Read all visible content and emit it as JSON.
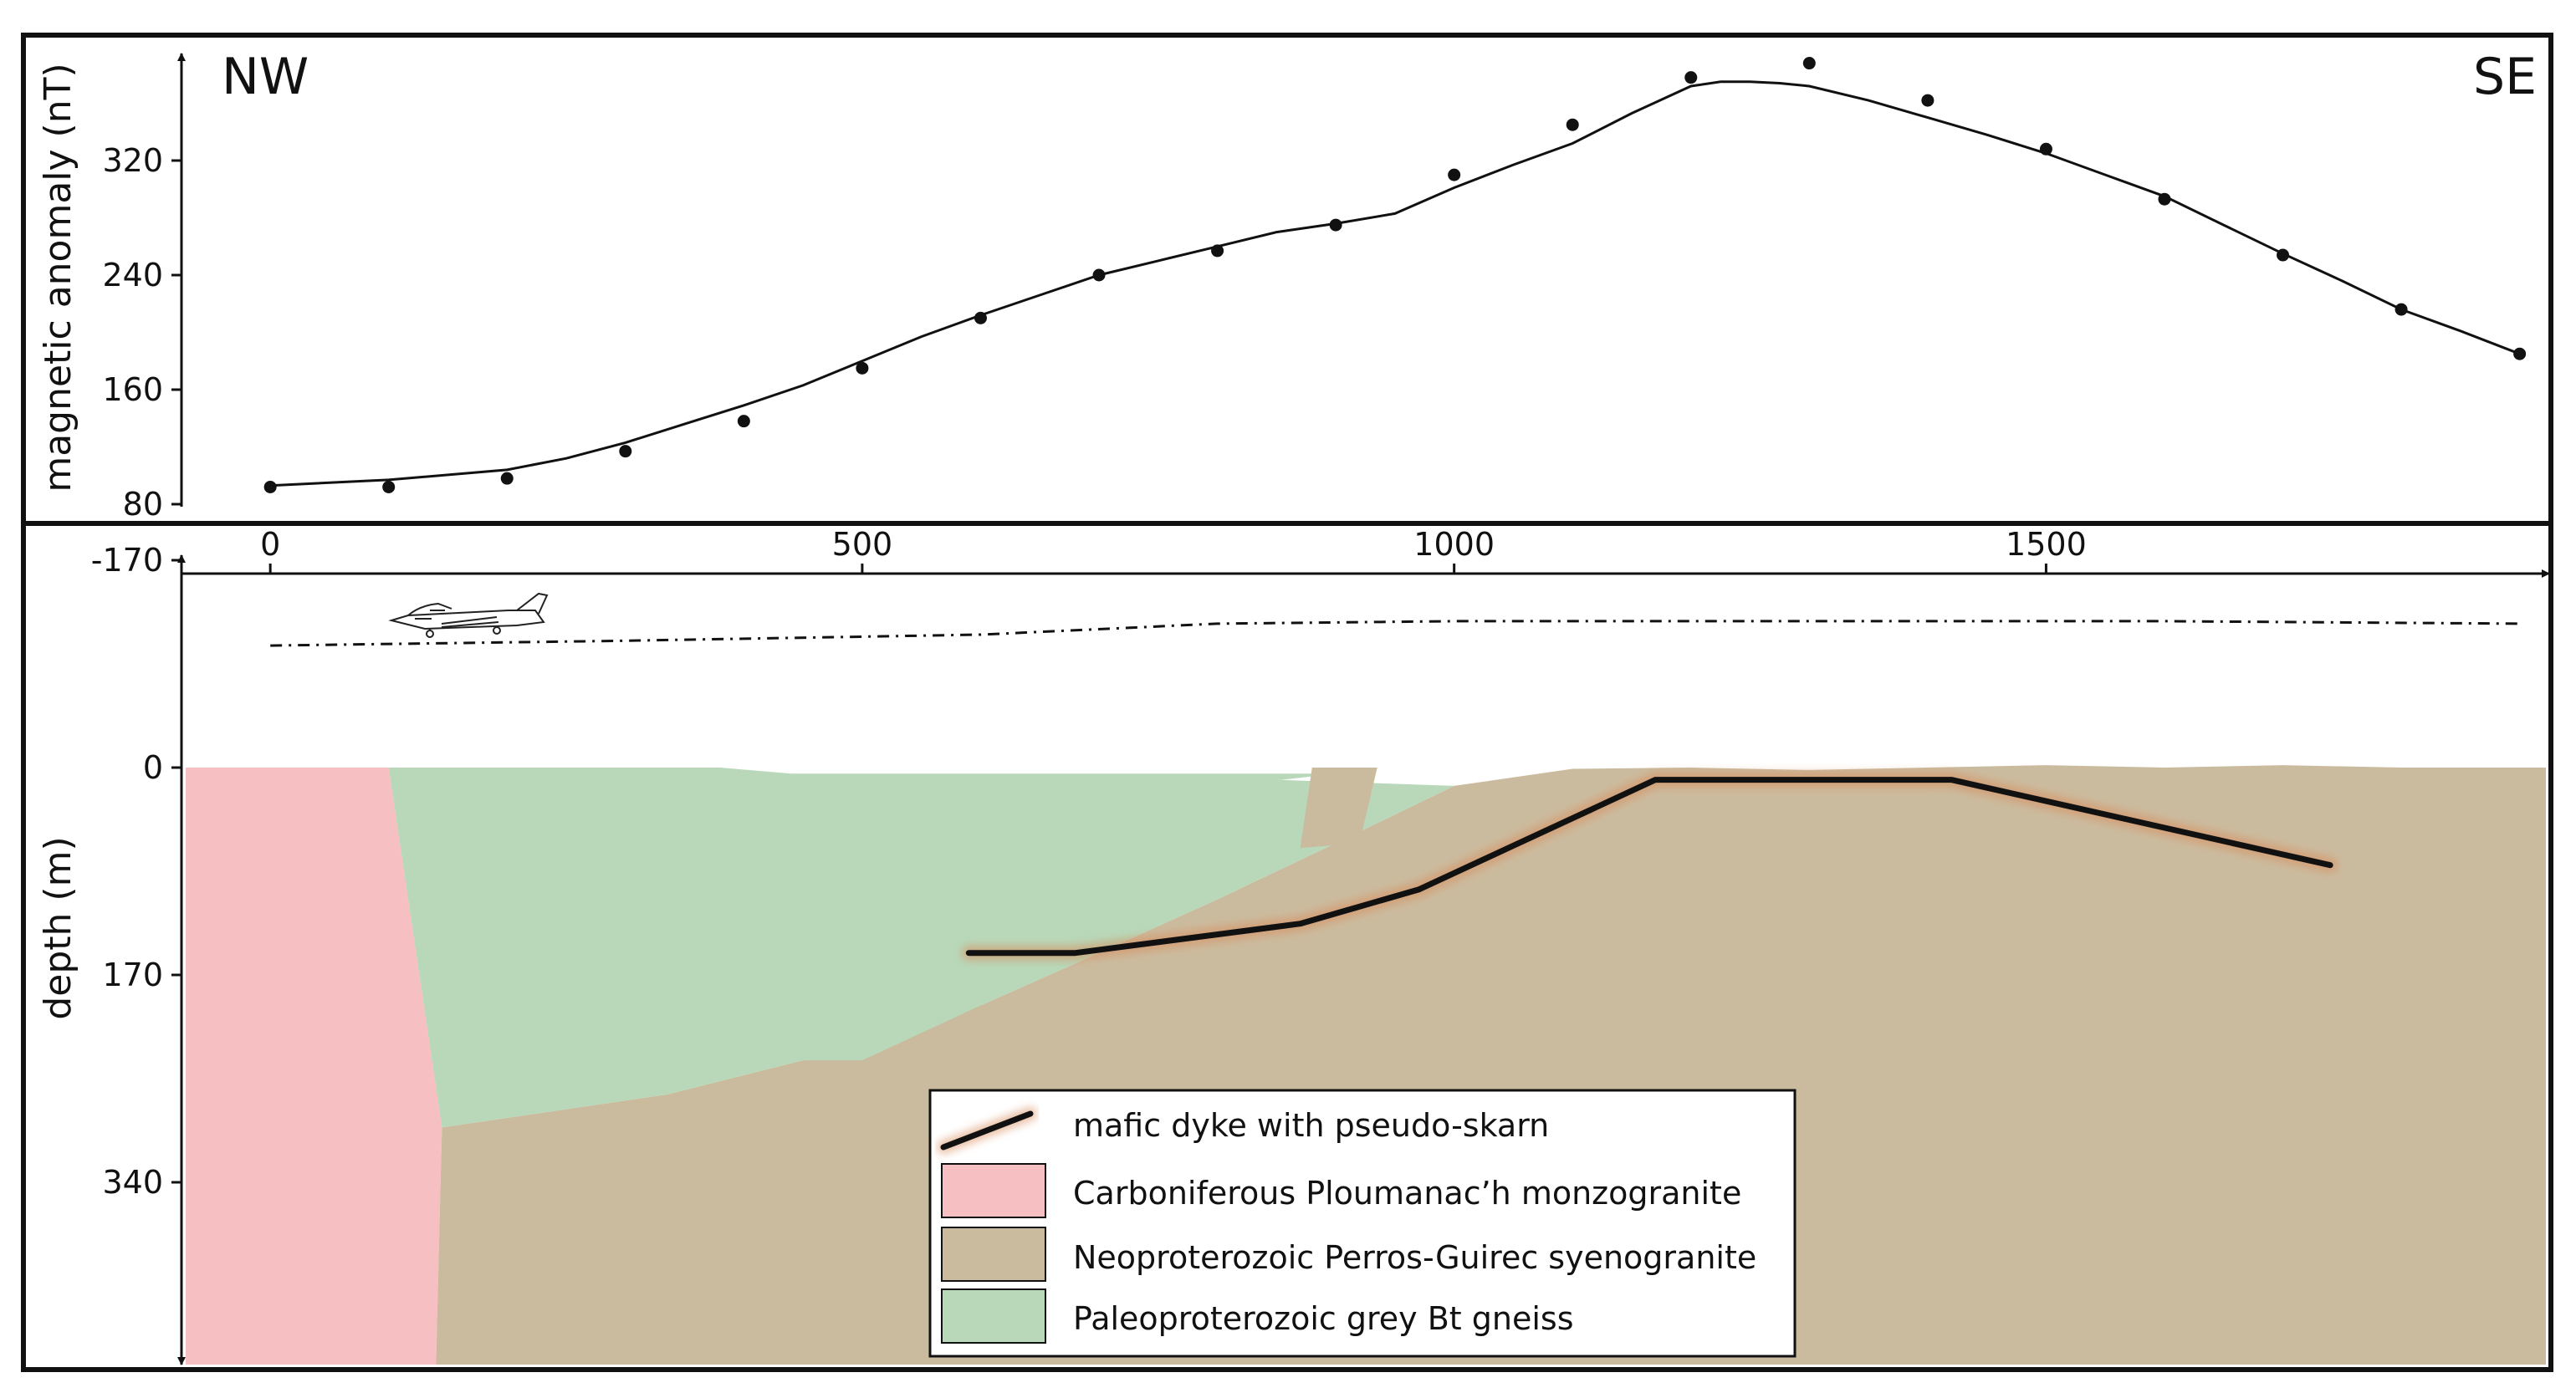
{
  "chart_data": [
    {
      "type": "scatter",
      "ylabel": "magnetic anomaly (nT)",
      "yticks": [
        80,
        160,
        240,
        320
      ],
      "ylim": [
        75,
        385
      ],
      "xlim": [
        -75,
        1925
      ],
      "direction_labels": {
        "left": "NW",
        "right": "SE"
      },
      "series": [
        {
          "kind": "points",
          "x": [
            0,
            100,
            200,
            300,
            400,
            500,
            600,
            700,
            800,
            900,
            1000,
            1100,
            1200,
            1300,
            1400,
            1500,
            1600,
            1700,
            1800,
            1900
          ],
          "y": [
            92,
            92,
            98,
            117,
            138,
            175,
            210,
            240,
            257,
            275,
            310,
            345,
            378,
            388,
            362,
            328,
            293,
            254,
            216,
            185
          ]
        },
        {
          "kind": "line",
          "x": [
            0,
            100,
            200,
            250,
            300,
            350,
            400,
            450,
            500,
            550,
            600,
            650,
            700,
            750,
            800,
            850,
            900,
            950,
            1000,
            1050,
            1100,
            1150,
            1200,
            1225,
            1250,
            1275,
            1300,
            1350,
            1400,
            1450,
            1500,
            1550,
            1600,
            1650,
            1700,
            1750,
            1800,
            1850,
            1900
          ],
          "y": [
            93,
            97,
            104,
            112,
            123,
            136,
            149,
            163,
            180,
            197,
            212,
            226,
            240,
            250,
            260,
            270,
            276,
            283,
            301,
            317,
            332,
            353,
            372,
            375,
            375,
            374,
            372,
            362,
            350,
            338,
            325,
            310,
            295,
            275,
            255,
            236,
            216,
            201,
            185
          ]
        }
      ]
    },
    {
      "type": "area",
      "xlabel": "",
      "ylabel": "depth (m)",
      "xticks": [
        0,
        500,
        1000,
        1500
      ],
      "yticks": [
        -170,
        0,
        170,
        340
      ],
      "xlim": [
        -75,
        1925
      ],
      "ylim": [
        -170,
        500
      ],
      "flight_line": {
        "x": [
          0,
          300,
          600,
          800,
          1000,
          1200,
          1400,
          1600,
          1900
        ],
        "y": [
          -100,
          -104,
          -109,
          -118,
          -120,
          -120,
          -120,
          -120,
          -118
        ]
      },
      "units": [
        {
          "name": "Carboniferous Ploumanac'h monzogranite",
          "color": "#f6bfc1",
          "x": [
            -75,
            100,
            145,
            140,
            -75
          ],
          "y": [
            0,
            0,
            295,
            500,
            500
          ]
        },
        {
          "name": "Neoproterozoic Perros-Guirec syenogranite",
          "color": "#cbbb9e",
          "x": [
            145,
            335,
            450,
            600,
            700,
            800,
            900,
            1000,
            1100,
            1200,
            1300,
            1400,
            1500,
            1600,
            1700,
            1800,
            1925,
            1925,
            140
          ],
          "y": [
            295,
            268,
            240,
            195,
            152,
            108,
            62,
            15,
            1,
            0,
            2,
            0,
            -2,
            0,
            -2,
            0,
            0,
            500,
            500
          ]
        },
        {
          "name": "Paleoproterozoic grey Bt gneiss",
          "color": "#b8d8b9",
          "x": [
            100,
            160,
            220,
            300,
            380,
            440,
            600,
            700,
            800,
            900,
            855,
            850,
            1000,
            900,
            800,
            700,
            600,
            500,
            450,
            335,
            145
          ],
          "y": [
            0,
            0,
            0,
            0,
            0,
            5,
            5,
            5,
            5,
            5,
            10,
            10,
            15,
            62,
            108,
            152,
            195,
            240,
            240,
            268,
            295
          ]
        }
      ],
      "dyke": {
        "name": "mafic dyke with pseudo-skarn",
        "x": [
          590,
          680,
          870,
          970,
          1170,
          1420,
          1740
        ],
        "y": [
          152,
          152,
          128,
          100,
          10,
          10,
          80
        ]
      }
    }
  ],
  "legend": {
    "dyke_label": "mafic dyke with pseudo-skarn",
    "items": [
      {
        "label": "Carboniferous Ploumanac’h monzogranite",
        "color": "#f6bfc1"
      },
      {
        "label": "Neoproterozoic Perros-Guirec syenogranite",
        "color": "#cbbb9e"
      },
      {
        "label": "Paleoproterozoic grey Bt gneiss",
        "color": "#b8d8b9"
      }
    ]
  },
  "colors": {
    "frame": "#111111",
    "dyke_glow": "#d98a5a"
  }
}
